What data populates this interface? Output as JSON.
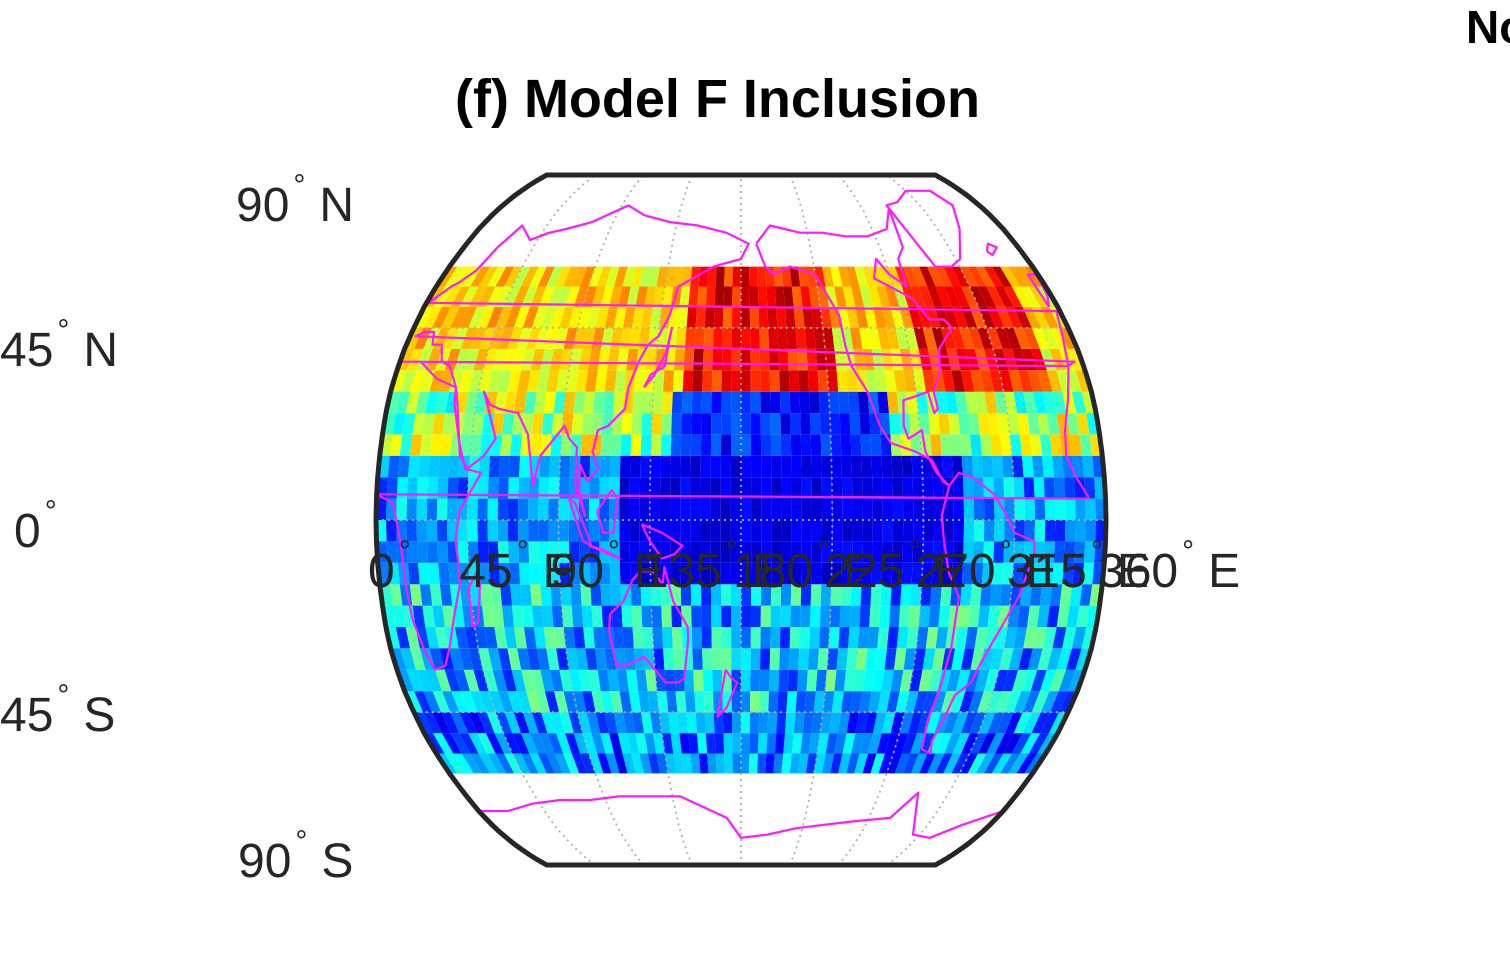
{
  "figure": {
    "title": "(f) Model F Inclusion",
    "corner_text": "No"
  },
  "map": {
    "projection": "robinson",
    "colormap": "jet",
    "coastline_color": "#ff1aff",
    "frame_color": "#262626",
    "grid_color": "#b0b0b0",
    "grid": true,
    "data_lat_range": [
      -60,
      60
    ],
    "data_lon_range": [
      0,
      360
    ],
    "cell_size_deg": 5,
    "lat_labels": [
      {
        "lat": 90,
        "value": "90",
        "hem": "N"
      },
      {
        "lat": 45,
        "value": "45",
        "hem": "N"
      },
      {
        "lat": 0,
        "value": "0",
        "hem": ""
      },
      {
        "lat": -45,
        "value": "45",
        "hem": "S"
      },
      {
        "lat": -90,
        "value": "90",
        "hem": "S"
      }
    ],
    "lon_labels": [
      {
        "lon": 0,
        "value": "0",
        "hem": ""
      },
      {
        "lon": 45,
        "value": "45",
        "hem": "E"
      },
      {
        "lon": 90,
        "value": "90",
        "hem": "E"
      },
      {
        "lon": 135,
        "value": "135",
        "hem": "E"
      },
      {
        "lon": 180,
        "value": "180",
        "hem": "E"
      },
      {
        "lon": 225,
        "value": "225",
        "hem": "E"
      },
      {
        "lon": 270,
        "value": "270",
        "hem": "E"
      },
      {
        "lon": 315,
        "value": "315",
        "hem": "E"
      },
      {
        "lon": 360,
        "value": "360",
        "hem": "E"
      }
    ]
  }
}
